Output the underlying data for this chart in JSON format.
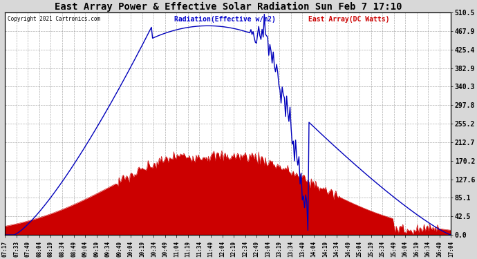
{
  "title": "East Array Power & Effective Solar Radiation Sun Feb 7 17:10",
  "copyright": "Copyright 2021 Cartronics.com",
  "legend_radiation": "Radiation(Effective w/m2)",
  "legend_array": "East Array(DC Watts)",
  "ylabel_right_ticks": [
    0.0,
    42.5,
    85.1,
    127.6,
    170.2,
    212.7,
    255.2,
    297.8,
    340.3,
    382.9,
    425.4,
    467.9,
    510.5
  ],
  "background_color": "#d8d8d8",
  "plot_bg_color": "#ffffff",
  "radiation_color": "#0000bb",
  "array_color": "#cc0000",
  "array_fill_color": "#cc0000",
  "grid_color": "#999999",
  "title_color": "#000000",
  "copyright_color": "#000000",
  "legend_radiation_color": "#0000cc",
  "legend_array_color": "#cc0000",
  "x_tick_labels": [
    "07:17",
    "07:33",
    "07:49",
    "08:04",
    "08:19",
    "08:34",
    "08:49",
    "09:04",
    "09:19",
    "09:34",
    "09:49",
    "10:04",
    "10:19",
    "10:34",
    "10:49",
    "11:04",
    "11:19",
    "11:34",
    "11:49",
    "12:04",
    "12:19",
    "12:34",
    "12:49",
    "13:04",
    "13:19",
    "13:34",
    "13:49",
    "14:04",
    "14:19",
    "14:34",
    "14:49",
    "15:04",
    "15:19",
    "15:34",
    "15:49",
    "16:04",
    "16:19",
    "16:34",
    "16:49",
    "17:04"
  ],
  "n_points": 400,
  "ymax": 510.5,
  "ymin": 0.0
}
